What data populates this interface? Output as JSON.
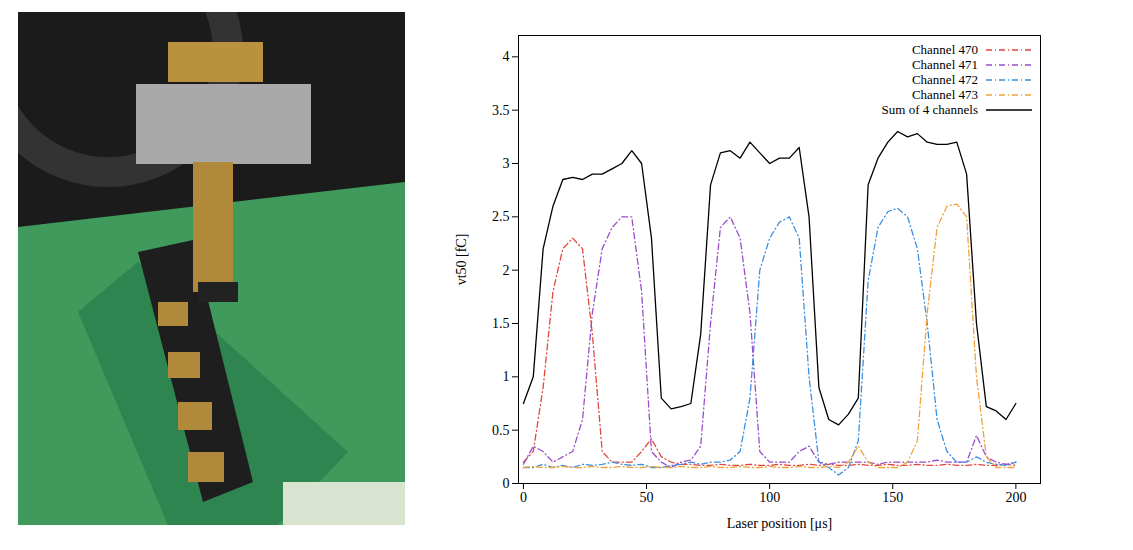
{
  "chart_data": {
    "type": "line",
    "xlabel": "Laser position [μs]",
    "ylabel": "vt50 [fC]",
    "x": [
      0,
      4,
      8,
      12,
      16,
      20,
      24,
      28,
      32,
      36,
      40,
      44,
      48,
      52,
      56,
      60,
      64,
      68,
      72,
      76,
      80,
      84,
      88,
      92,
      96,
      100,
      104,
      108,
      112,
      116,
      120,
      124,
      128,
      132,
      136,
      140,
      144,
      148,
      152,
      156,
      160,
      164,
      168,
      172,
      176,
      180,
      184,
      188,
      192,
      196,
      200
    ],
    "xlim": [
      -2,
      210
    ],
    "xticks": [
      0,
      50,
      100,
      150,
      200
    ],
    "ylim": [
      0,
      4.2
    ],
    "yticks": [
      0,
      0.5,
      1,
      1.5,
      2,
      2.5,
      3,
      3.5,
      4
    ],
    "legend": "top-right",
    "series": [
      {
        "name": "Channel 470",
        "color": "#e0483c",
        "line_style": "dashdot",
        "values": [
          0.2,
          0.3,
          0.9,
          1.8,
          2.2,
          2.3,
          2.2,
          1.4,
          0.3,
          0.2,
          0.2,
          0.2,
          0.3,
          0.42,
          0.25,
          0.2,
          0.18,
          0.18,
          0.17,
          0.17,
          0.18,
          0.17,
          0.17,
          0.18,
          0.17,
          0.17,
          0.18,
          0.17,
          0.17,
          0.18,
          0.17,
          0.18,
          0.17,
          0.17,
          0.18,
          0.17,
          0.17,
          0.18,
          0.17,
          0.17,
          0.18,
          0.17,
          0.17,
          0.18,
          0.17,
          0.17,
          0.18,
          0.17,
          0.17,
          0.18,
          0.17
        ]
      },
      {
        "name": "Channel 471",
        "color": "#9b4dca",
        "line_style": "dashdot",
        "values": [
          0.18,
          0.35,
          0.3,
          0.2,
          0.25,
          0.3,
          0.6,
          1.6,
          2.2,
          2.4,
          2.5,
          2.5,
          1.8,
          0.3,
          0.2,
          0.15,
          0.2,
          0.22,
          0.35,
          1.5,
          2.4,
          2.5,
          2.3,
          1.6,
          0.3,
          0.2,
          0.2,
          0.2,
          0.3,
          0.35,
          0.2,
          0.18,
          0.2,
          0.2,
          0.2,
          0.2,
          0.18,
          0.2,
          0.2,
          0.2,
          0.2,
          0.2,
          0.22,
          0.2,
          0.2,
          0.2,
          0.45,
          0.25,
          0.2,
          0.18,
          0.2
        ]
      },
      {
        "name": "Channel 472",
        "color": "#3d8fe0",
        "line_style": "dashdot",
        "values": [
          0.15,
          0.15,
          0.18,
          0.15,
          0.17,
          0.15,
          0.18,
          0.17,
          0.18,
          0.2,
          0.18,
          0.17,
          0.18,
          0.15,
          0.15,
          0.17,
          0.18,
          0.2,
          0.18,
          0.2,
          0.2,
          0.22,
          0.3,
          0.8,
          2.0,
          2.3,
          2.45,
          2.5,
          2.3,
          1.0,
          0.2,
          0.15,
          0.08,
          0.15,
          0.4,
          1.9,
          2.4,
          2.55,
          2.58,
          2.5,
          2.2,
          1.5,
          0.6,
          0.3,
          0.2,
          0.2,
          0.25,
          0.2,
          0.18,
          0.17,
          0.2
        ]
      },
      {
        "name": "Channel 473",
        "color": "#f0a23c",
        "line_style": "dashdot",
        "values": [
          0.15,
          0.16,
          0.15,
          0.15,
          0.16,
          0.15,
          0.15,
          0.16,
          0.15,
          0.15,
          0.16,
          0.15,
          0.15,
          0.16,
          0.15,
          0.15,
          0.16,
          0.15,
          0.15,
          0.16,
          0.15,
          0.15,
          0.16,
          0.15,
          0.15,
          0.16,
          0.15,
          0.15,
          0.16,
          0.15,
          0.15,
          0.16,
          0.15,
          0.2,
          0.35,
          0.2,
          0.15,
          0.15,
          0.15,
          0.2,
          0.4,
          1.6,
          2.4,
          2.6,
          2.62,
          2.5,
          1.0,
          0.25,
          0.15,
          0.15,
          0.15
        ]
      },
      {
        "name": "Sum of 4 channels",
        "color": "#000000",
        "line_style": "solid",
        "values": [
          0.75,
          1.0,
          2.2,
          2.6,
          2.85,
          2.87,
          2.85,
          2.9,
          2.9,
          2.95,
          3.0,
          3.12,
          3.0,
          2.3,
          0.8,
          0.7,
          0.72,
          0.75,
          1.4,
          2.8,
          3.1,
          3.12,
          3.05,
          3.2,
          3.1,
          3.0,
          3.05,
          3.05,
          3.15,
          2.5,
          0.9,
          0.6,
          0.55,
          0.65,
          0.8,
          2.8,
          3.05,
          3.2,
          3.3,
          3.25,
          3.28,
          3.2,
          3.18,
          3.18,
          3.2,
          2.9,
          1.5,
          0.72,
          0.68,
          0.6,
          0.75
        ]
      }
    ]
  }
}
